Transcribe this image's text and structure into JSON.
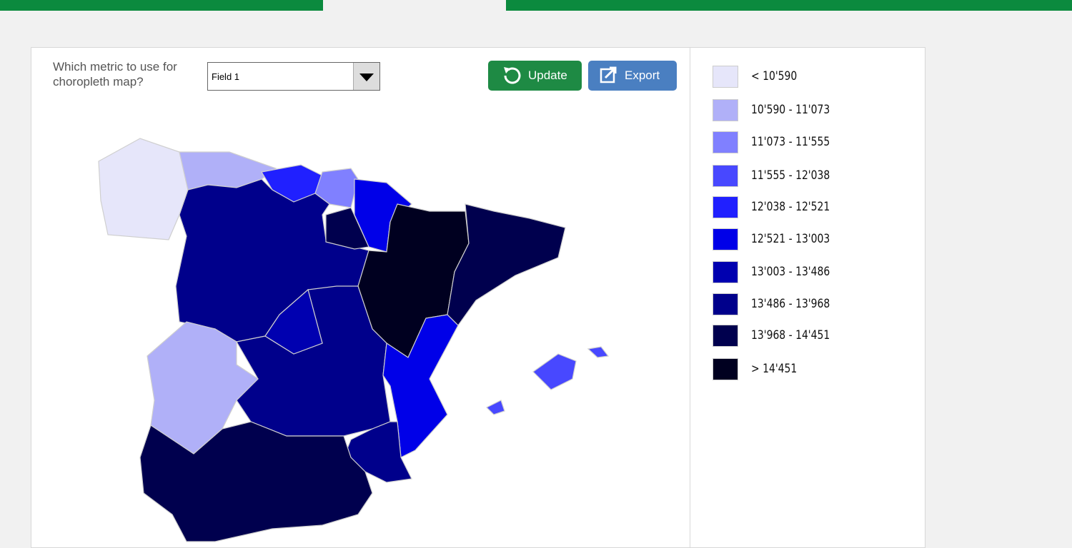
{
  "prompt": "Which metric to use for choropleth map?",
  "dropdown": {
    "selected": "Field 1"
  },
  "buttons": {
    "update": "Update",
    "export": "Export"
  },
  "legend": [
    {
      "label": "< 10'590",
      "color": "#e6e6fa"
    },
    {
      "label": "10'590 - 11'073",
      "color": "#b0b0f8"
    },
    {
      "label": "11'073 - 11'555",
      "color": "#8080ff"
    },
    {
      "label": "11'555 - 12'038",
      "color": "#4848ff"
    },
    {
      "label": "12'038 - 12'521",
      "color": "#2020ff"
    },
    {
      "label": "12'521 - 13'003",
      "color": "#0000e8"
    },
    {
      "label": "13'003 - 13'486",
      "color": "#0000b0"
    },
    {
      "label": "13'486 - 13'968",
      "color": "#00008b"
    },
    {
      "label": "13'968 - 14'451",
      "color": "#00004e"
    },
    {
      "label": "> 14'451",
      "color": "#000020"
    }
  ]
}
